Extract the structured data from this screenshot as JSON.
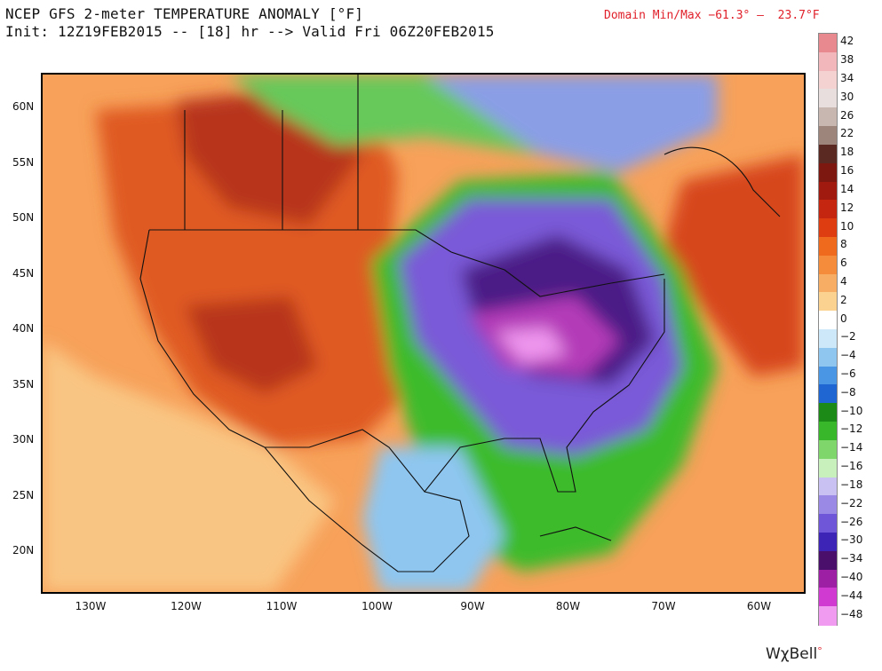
{
  "header": {
    "title_line1": "NCEP GFS 2-meter TEMPERATURE ANOMALY [°F]",
    "title_line2": "Init: 12Z19FEB2015 -- [18] hr --> Valid Fri 06Z20FEB2015",
    "domain_minmax": "Domain Min/Max −61.3° –  23.7°F"
  },
  "map": {
    "lat_labels": [
      "60N",
      "55N",
      "50N",
      "45N",
      "40N",
      "35N",
      "30N",
      "25N",
      "20N"
    ],
    "lon_labels": [
      "130W",
      "120W",
      "110W",
      "100W",
      "90W",
      "80W",
      "70W",
      "60W"
    ],
    "projection_extent": {
      "lon_min": -135,
      "lon_max": -55,
      "lat_min": 16,
      "lat_max": 63
    },
    "anomaly_regions": [
      {
        "name": "western warm anomaly",
        "color": "#d9521e"
      },
      {
        "name": "far-northwest warm anomaly",
        "color": "#c0401a"
      },
      {
        "name": "atlantic canada warm anomaly",
        "color": "#d4451c"
      },
      {
        "name": "central/eastern cold anomaly",
        "color": "#7a5ad8"
      },
      {
        "name": "ohio valley extreme cold",
        "color": "#e070e0"
      },
      {
        "name": "gulf/atlantic cool band",
        "color": "#3dbb2a"
      }
    ]
  },
  "colorbar": {
    "entries": [
      {
        "label": "42",
        "color": "#e7898e"
      },
      {
        "label": "38",
        "color": "#f2b7ba"
      },
      {
        "label": "34",
        "color": "#f4d2d2"
      },
      {
        "label": "30",
        "color": "#e8dede"
      },
      {
        "label": "26",
        "color": "#c8b6b0"
      },
      {
        "label": "22",
        "color": "#9e857c"
      },
      {
        "label": "18",
        "color": "#5a2a22"
      },
      {
        "label": "16",
        "color": "#7d1810"
      },
      {
        "label": "14",
        "color": "#a11a10"
      },
      {
        "label": "12",
        "color": "#c4260f"
      },
      {
        "label": "10",
        "color": "#de3d11"
      },
      {
        "label": "8",
        "color": "#ef6a1c"
      },
      {
        "label": "6",
        "color": "#f58c3c"
      },
      {
        "label": "4",
        "color": "#f8ad64"
      },
      {
        "label": "2",
        "color": "#fbd28f"
      },
      {
        "label": "0",
        "color": "#ffffff"
      },
      {
        "label": "−2",
        "color": "#cde8f8"
      },
      {
        "label": "−4",
        "color": "#8ec6f0"
      },
      {
        "label": "−6",
        "color": "#4b96e4"
      },
      {
        "label": "−8",
        "color": "#1f66d2"
      },
      {
        "label": "−10",
        "color": "#1c8a17"
      },
      {
        "label": "−12",
        "color": "#38b72b"
      },
      {
        "label": "−14",
        "color": "#7fd66b"
      },
      {
        "label": "−16",
        "color": "#c8f0bd"
      },
      {
        "label": "−18",
        "color": "#c9c1f2"
      },
      {
        "label": "−22",
        "color": "#9a8ae6"
      },
      {
        "label": "−26",
        "color": "#6f55d8"
      },
      {
        "label": "−30",
        "color": "#3d24b6"
      },
      {
        "label": "−34",
        "color": "#4a0f6b"
      },
      {
        "label": "−40",
        "color": "#9d1fa3"
      },
      {
        "label": "−44",
        "color": "#d03ad0"
      },
      {
        "label": "−48",
        "color": "#f09af0"
      }
    ]
  },
  "brand": {
    "text": "WχBell",
    "mark": "°"
  }
}
